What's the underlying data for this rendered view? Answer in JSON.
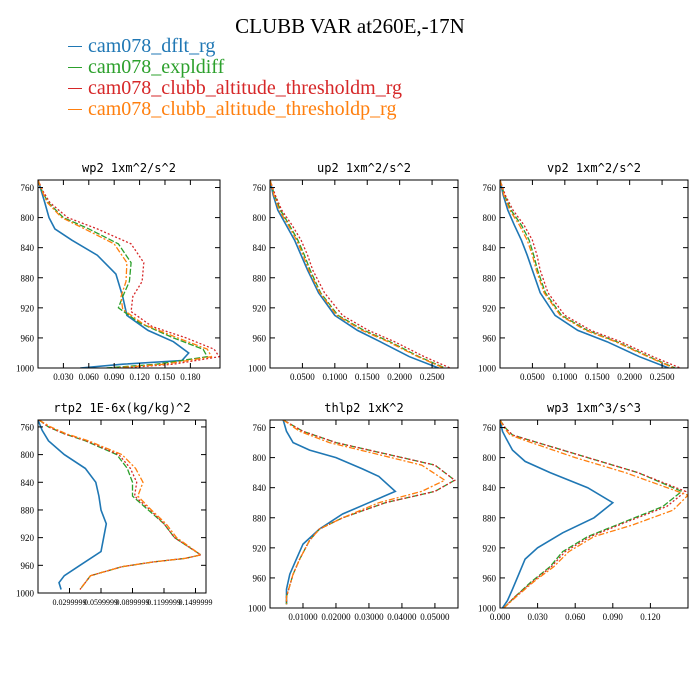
{
  "title": "CLUBB VAR at260E,-17N",
  "legend": [
    {
      "name": "cam078_dflt_rg",
      "color": "#1f77b4"
    },
    {
      "name": "cam078_expldiff",
      "color": "#2ca02c"
    },
    {
      "name": "cam078_clubb_altitude_thresholdm_rg",
      "color": "#d62728"
    },
    {
      "name": "cam078_clubb_altitude_thresholdp_rg",
      "color": "#ff7f0e"
    }
  ],
  "chart_data": [
    {
      "type": "line",
      "title": "wp2  1xm^2/s^2",
      "xlim": [
        0,
        0.215
      ],
      "ylim": [
        750,
        1000
      ],
      "xticks": [
        0.03,
        0.06,
        0.09,
        0.12,
        0.15,
        0.18
      ],
      "xtick_labels": [
        "0.030",
        "0.060",
        "0.090",
        "0.120",
        "0.150",
        "0.180"
      ],
      "yticks": [
        760,
        800,
        840,
        880,
        920,
        960,
        1000
      ],
      "series": [
        {
          "name": "cam078_dflt_rg",
          "x": [
            0,
            0.004,
            0.008,
            0.013,
            0.02,
            0.04,
            0.07,
            0.092,
            0.1,
            0.105,
            0.13,
            0.16,
            0.178,
            0.17,
            0.1,
            0.05
          ],
          "y": [
            750,
            765,
            780,
            800,
            815,
            830,
            850,
            875,
            905,
            930,
            950,
            965,
            980,
            990,
            995,
            1000
          ]
        },
        {
          "name": "cam078_expldiff",
          "x": [
            0,
            0.005,
            0.012,
            0.03,
            0.06,
            0.095,
            0.11,
            0.108,
            0.1,
            0.095,
            0.12,
            0.16,
            0.195,
            0.2,
            0.14,
            0.08
          ],
          "y": [
            750,
            765,
            780,
            800,
            815,
            835,
            860,
            885,
            905,
            920,
            940,
            960,
            975,
            985,
            995,
            1000
          ]
        },
        {
          "name": "cam078_clubb_altitude_thresholdm_rg",
          "x": [
            0,
            0.006,
            0.014,
            0.035,
            0.07,
            0.11,
            0.125,
            0.123,
            0.112,
            0.11,
            0.135,
            0.175,
            0.208,
            0.214,
            0.16,
            0.1
          ],
          "y": [
            750,
            765,
            780,
            800,
            815,
            835,
            860,
            885,
            905,
            925,
            945,
            960,
            975,
            985,
            995,
            1000
          ]
        },
        {
          "name": "cam078_clubb_altitude_thresholdp_rg",
          "x": [
            0,
            0.005,
            0.011,
            0.028,
            0.055,
            0.09,
            0.105,
            0.104,
            0.098,
            0.1,
            0.125,
            0.165,
            0.2,
            0.205,
            0.15,
            0.09
          ],
          "y": [
            750,
            765,
            780,
            800,
            815,
            835,
            860,
            885,
            905,
            922,
            942,
            960,
            975,
            985,
            995,
            1000
          ]
        }
      ]
    },
    {
      "type": "line",
      "title": "up2  1xm^2/s^2",
      "xlim": [
        0,
        0.29
      ],
      "ylim": [
        750,
        1000
      ],
      "xticks": [
        0.05,
        0.1,
        0.15,
        0.2,
        0.25
      ],
      "xtick_labels": [
        "0.0500",
        "0.1000",
        "0.1500",
        "0.2000",
        "0.2500"
      ],
      "yticks": [
        760,
        800,
        840,
        880,
        920,
        960,
        1000
      ],
      "series": [
        {
          "name": "cam078_dflt_rg",
          "x": [
            0,
            0.005,
            0.012,
            0.025,
            0.038,
            0.048,
            0.058,
            0.075,
            0.1,
            0.135,
            0.17,
            0.215,
            0.26
          ],
          "y": [
            750,
            770,
            790,
            810,
            830,
            850,
            870,
            900,
            930,
            950,
            965,
            985,
            1000
          ]
        },
        {
          "name": "cam078_expldiff",
          "x": [
            0,
            0.007,
            0.016,
            0.03,
            0.043,
            0.053,
            0.062,
            0.078,
            0.105,
            0.145,
            0.185,
            0.23,
            0.27
          ],
          "y": [
            750,
            770,
            790,
            810,
            830,
            850,
            870,
            900,
            930,
            950,
            965,
            985,
            1000
          ]
        },
        {
          "name": "cam078_clubb_altitude_thresholdm_rg",
          "x": [
            0,
            0.008,
            0.018,
            0.034,
            0.048,
            0.058,
            0.066,
            0.084,
            0.112,
            0.152,
            0.192,
            0.238,
            0.278
          ],
          "y": [
            750,
            770,
            790,
            810,
            830,
            850,
            870,
            900,
            930,
            950,
            965,
            985,
            1000
          ]
        },
        {
          "name": "cam078_clubb_altitude_thresholdp_rg",
          "x": [
            0,
            0.006,
            0.014,
            0.028,
            0.041,
            0.051,
            0.06,
            0.077,
            0.103,
            0.142,
            0.182,
            0.228,
            0.268
          ],
          "y": [
            750,
            770,
            790,
            810,
            830,
            850,
            870,
            900,
            930,
            950,
            965,
            985,
            1000
          ]
        }
      ]
    },
    {
      "type": "line",
      "title": "vp2  1xm^2/s^2",
      "xlim": [
        0,
        0.29
      ],
      "ylim": [
        750,
        1000
      ],
      "xticks": [
        0.05,
        0.1,
        0.15,
        0.2,
        0.25
      ],
      "xtick_labels": [
        "0.0500",
        "0.1000",
        "0.1500",
        "0.2000",
        "0.2500"
      ],
      "yticks": [
        760,
        800,
        840,
        880,
        920,
        960,
        1000
      ],
      "series": [
        {
          "name": "cam078_dflt_rg",
          "x": [
            0,
            0.005,
            0.012,
            0.022,
            0.033,
            0.042,
            0.05,
            0.062,
            0.085,
            0.12,
            0.165,
            0.215,
            0.26
          ],
          "y": [
            750,
            770,
            790,
            810,
            830,
            850,
            870,
            900,
            930,
            950,
            965,
            985,
            1000
          ]
        },
        {
          "name": "cam078_expldiff",
          "x": [
            0,
            0.007,
            0.017,
            0.033,
            0.045,
            0.052,
            0.058,
            0.07,
            0.095,
            0.135,
            0.18,
            0.23,
            0.27
          ],
          "y": [
            750,
            770,
            790,
            810,
            830,
            850,
            870,
            900,
            930,
            950,
            965,
            985,
            1000
          ]
        },
        {
          "name": "cam078_clubb_altitude_thresholdm_rg",
          "x": [
            0,
            0.008,
            0.02,
            0.037,
            0.05,
            0.057,
            0.062,
            0.074,
            0.1,
            0.14,
            0.186,
            0.236,
            0.278
          ],
          "y": [
            750,
            770,
            790,
            810,
            830,
            850,
            870,
            900,
            930,
            950,
            965,
            985,
            1000
          ]
        },
        {
          "name": "cam078_clubb_altitude_thresholdp_rg",
          "x": [
            0,
            0.006,
            0.015,
            0.03,
            0.042,
            0.05,
            0.056,
            0.068,
            0.093,
            0.132,
            0.178,
            0.228,
            0.268
          ],
          "y": [
            750,
            770,
            790,
            810,
            830,
            850,
            870,
            900,
            930,
            950,
            965,
            985,
            1000
          ]
        }
      ]
    },
    {
      "type": "line",
      "title": "rtp2  1E-6x(kg/kg)^2",
      "xlim": [
        0,
        0.16
      ],
      "ylim": [
        750,
        1000
      ],
      "xticks": [
        0.03,
        0.06,
        0.09,
        0.12,
        0.15
      ],
      "xtick_labels": [
        "0.0299999",
        "0.0599999",
        "0.0899999",
        "0.1199999",
        "0.1499999"
      ],
      "yticks": [
        760,
        800,
        840,
        880,
        920,
        960,
        1000
      ],
      "series": [
        {
          "name": "cam078_dflt_rg",
          "x": [
            0,
            0.004,
            0.01,
            0.025,
            0.045,
            0.055,
            0.058,
            0.06,
            0.065,
            0.06,
            0.04,
            0.025,
            0.02,
            0.022
          ],
          "y": [
            750,
            765,
            780,
            800,
            820,
            840,
            860,
            880,
            900,
            940,
            960,
            975,
            985,
            995
          ]
        },
        {
          "name": "cam078_expldiff",
          "x": [
            0.001,
            0.01,
            0.025,
            0.045,
            0.075,
            0.085,
            0.09,
            0.09,
            0.105,
            0.12,
            0.13,
            0.155,
            0.14,
            0.11,
            0.08,
            0.05,
            0.04
          ],
          "y": [
            750,
            760,
            770,
            780,
            800,
            820,
            840,
            860,
            880,
            900,
            920,
            945,
            950,
            955,
            962,
            975,
            995
          ]
        },
        {
          "name": "cam078_clubb_altitude_thresholdm_rg",
          "x": [
            0.001,
            0.01,
            0.025,
            0.046,
            0.077,
            0.088,
            0.094,
            0.092,
            0.107,
            0.12,
            0.13,
            0.155,
            0.14,
            0.11,
            0.08,
            0.05,
            0.04
          ],
          "y": [
            750,
            760,
            770,
            780,
            800,
            820,
            840,
            860,
            880,
            900,
            920,
            945,
            950,
            955,
            962,
            975,
            995
          ]
        },
        {
          "name": "cam078_clubb_altitude_thresholdp_rg",
          "x": [
            0.001,
            0.012,
            0.027,
            0.048,
            0.08,
            0.093,
            0.1,
            0.095,
            0.108,
            0.122,
            0.132,
            0.155,
            0.14,
            0.11,
            0.08,
            0.05,
            0.04
          ],
          "y": [
            750,
            760,
            770,
            780,
            800,
            820,
            840,
            860,
            880,
            900,
            920,
            945,
            950,
            955,
            962,
            975,
            995
          ]
        }
      ]
    },
    {
      "type": "line",
      "title": "thlp2  1xK^2",
      "xlim": [
        0,
        0.057
      ],
      "ylim": [
        750,
        1000
      ],
      "xticks": [
        0.01,
        0.02,
        0.03,
        0.04,
        0.05
      ],
      "xtick_labels": [
        "0.01000",
        "0.02000",
        "0.03000",
        "0.04000",
        "0.05000"
      ],
      "yticks": [
        760,
        800,
        840,
        880,
        920,
        960,
        1000
      ],
      "series": [
        {
          "name": "cam078_dflt_rg",
          "x": [
            0.004,
            0.005,
            0.007,
            0.012,
            0.02,
            0.028,
            0.033,
            0.038,
            0.03,
            0.022,
            0.015,
            0.01,
            0.008,
            0.006,
            0.005,
            0.005
          ],
          "y": [
            750,
            765,
            780,
            790,
            800,
            815,
            825,
            845,
            860,
            875,
            895,
            915,
            935,
            955,
            975,
            995
          ]
        },
        {
          "name": "cam078_expldiff",
          "x": [
            0.004,
            0.01,
            0.02,
            0.035,
            0.05,
            0.056,
            0.05,
            0.035,
            0.022,
            0.015,
            0.012,
            0.009,
            0.007,
            0.006,
            0.005,
            0.005
          ],
          "y": [
            750,
            765,
            780,
            795,
            810,
            830,
            845,
            860,
            880,
            895,
            910,
            935,
            955,
            970,
            985,
            995
          ]
        },
        {
          "name": "cam078_clubb_altitude_thresholdm_rg",
          "x": [
            0.004,
            0.01,
            0.02,
            0.035,
            0.05,
            0.056,
            0.05,
            0.035,
            0.022,
            0.015,
            0.012,
            0.009,
            0.007,
            0.006,
            0.005,
            0.005
          ],
          "y": [
            750,
            765,
            780,
            795,
            810,
            830,
            845,
            860,
            880,
            895,
            910,
            935,
            955,
            970,
            985,
            995
          ]
        },
        {
          "name": "cam078_clubb_altitude_thresholdp_rg",
          "x": [
            0.004,
            0.009,
            0.018,
            0.032,
            0.046,
            0.053,
            0.046,
            0.033,
            0.022,
            0.015,
            0.012,
            0.009,
            0.007,
            0.006,
            0.005,
            0.005
          ],
          "y": [
            750,
            765,
            780,
            795,
            810,
            830,
            845,
            860,
            880,
            895,
            910,
            935,
            955,
            970,
            985,
            995
          ]
        }
      ]
    },
    {
      "type": "line",
      "title": "wp3  1xm^3/s^3",
      "xlim": [
        0,
        0.15
      ],
      "ylim": [
        750,
        1000
      ],
      "xticks": [
        0.0,
        0.03,
        0.06,
        0.09,
        0.12
      ],
      "xtick_labels": [
        "0.000",
        "0.030",
        "0.060",
        "0.090",
        "0.120"
      ],
      "yticks": [
        760,
        800,
        840,
        880,
        920,
        960,
        1000
      ],
      "series": [
        {
          "name": "cam078_dflt_rg",
          "x": [
            0,
            0.002,
            0.005,
            0.01,
            0.02,
            0.04,
            0.07,
            0.09,
            0.075,
            0.05,
            0.03,
            0.02,
            0.015,
            0.01,
            0.006,
            0.002
          ],
          "y": [
            750,
            765,
            775,
            790,
            805,
            820,
            840,
            860,
            880,
            900,
            920,
            935,
            955,
            975,
            990,
            1000
          ]
        },
        {
          "name": "cam078_expldiff",
          "x": [
            0,
            0.004,
            0.01,
            0.03,
            0.07,
            0.11,
            0.145,
            0.13,
            0.1,
            0.07,
            0.05,
            0.04,
            0.025,
            0.012,
            0.003
          ],
          "y": [
            750,
            760,
            770,
            780,
            800,
            820,
            845,
            865,
            885,
            905,
            925,
            945,
            965,
            985,
            1000
          ]
        },
        {
          "name": "cam078_clubb_altitude_thresholdm_rg",
          "x": [
            0,
            0.004,
            0.01,
            0.03,
            0.07,
            0.11,
            0.148,
            0.133,
            0.102,
            0.072,
            0.052,
            0.041,
            0.026,
            0.012,
            0.003
          ],
          "y": [
            750,
            760,
            770,
            780,
            800,
            820,
            845,
            865,
            885,
            905,
            925,
            945,
            965,
            985,
            1000
          ]
        },
        {
          "name": "cam078_clubb_altitude_thresholdp_rg",
          "x": [
            0,
            0.003,
            0.008,
            0.025,
            0.06,
            0.1,
            0.15,
            0.138,
            0.105,
            0.075,
            0.055,
            0.043,
            0.027,
            0.013,
            0.003
          ],
          "y": [
            750,
            760,
            770,
            780,
            800,
            820,
            850,
            870,
            890,
            905,
            925,
            945,
            965,
            985,
            1000
          ]
        }
      ]
    }
  ]
}
